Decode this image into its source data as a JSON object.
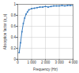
{
  "chart_data": {
    "type": "line",
    "x_label": "Frequency (Hz)",
    "y_label": "Absorption factor (α_s)",
    "x": [
      100,
      200,
      300,
      400,
      500,
      600,
      700,
      800,
      1000,
      1200,
      1400,
      1600,
      1800,
      2000,
      2200,
      2400,
      2600,
      2800,
      3000,
      3200,
      3400,
      3600,
      3800,
      4000
    ],
    "values": [
      0.12,
      0.3,
      0.5,
      0.65,
      0.75,
      0.82,
      0.86,
      0.9,
      0.92,
      0.93,
      0.94,
      0.95,
      0.95,
      0.96,
      0.95,
      0.96,
      0.97,
      0.97,
      0.97,
      0.98,
      0.97,
      0.98,
      0.98,
      0.98
    ],
    "color": "#3a7dc0",
    "marker": "circle",
    "xlim": [
      0,
      4000
    ],
    "xticks": [
      0,
      {
        "value": 1000,
        "label": "1 000"
      },
      {
        "value": 2000,
        "label": "2 000"
      },
      {
        "value": 3000,
        "label": "3 000"
      },
      {
        "value": 4000,
        "label": "4 000"
      }
    ],
    "ylim": [
      0,
      1
    ],
    "yticks": [
      0,
      0.2,
      0.4,
      0.6,
      0.8,
      1
    ],
    "grid": true
  }
}
